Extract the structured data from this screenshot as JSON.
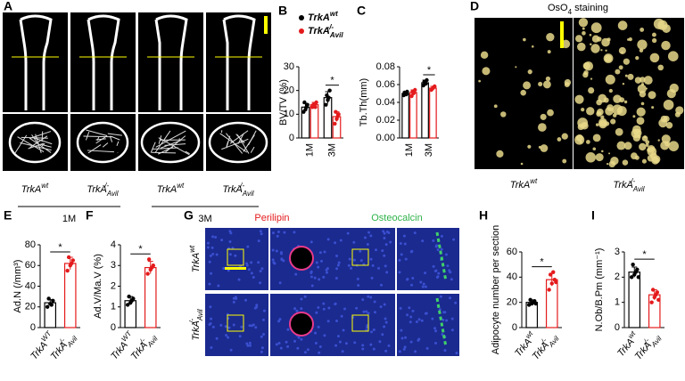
{
  "chart_data": [
    {
      "type": "bar",
      "letter": "B",
      "ylabel": "BV/TV (%)",
      "categories": [
        "1M",
        "3M"
      ],
      "series": [
        {
          "name": "TrkA",
          "sup": "wt",
          "color": "#000000",
          "values": [
            13,
            17
          ],
          "errors": [
            1.5,
            2.5
          ],
          "points": [
            [
              11,
              12,
              14,
              15,
              13
            ],
            [
              14,
              16,
              20,
              18,
              17
            ]
          ]
        },
        {
          "name": "TrkA",
          "sub": "Avil",
          "sup": "-/-",
          "color": "#e41a1c",
          "values": [
            14,
            9
          ],
          "errors": [
            1,
            2
          ],
          "points": [
            [
              13,
              14,
              15,
              14,
              13
            ],
            [
              6,
              8,
              10,
              11,
              9
            ]
          ]
        }
      ],
      "ylim": [
        0,
        30
      ],
      "yticks": [
        0,
        10,
        20,
        30
      ],
      "significance": {
        "text": "*",
        "category": "3M"
      }
    },
    {
      "type": "bar",
      "letter": "C",
      "ylabel": "Tb.Th(mm)",
      "categories": [
        "1M",
        "3M"
      ],
      "series": [
        {
          "color": "#000000",
          "values": [
            0.05,
            0.062
          ],
          "errors": [
            0.002,
            0.003
          ],
          "points": [
            [
              0.048,
              0.05,
              0.052,
              0.051,
              0.049
            ],
            [
              0.059,
              0.062,
              0.065,
              0.063,
              0.061
            ]
          ]
        },
        {
          "color": "#e41a1c",
          "values": [
            0.051,
            0.056
          ],
          "errors": [
            0.003,
            0.002
          ],
          "points": [
            [
              0.047,
              0.05,
              0.054,
              0.052,
              0.051
            ],
            [
              0.054,
              0.056,
              0.058,
              0.055,
              0.057
            ]
          ]
        }
      ],
      "ylim": [
        0,
        0.08
      ],
      "yticks": [
        {
          "value": 0,
          "label": "0.00"
        },
        {
          "value": 0.02,
          "label": "0.02"
        },
        {
          "value": 0.04,
          "label": "0.04"
        },
        {
          "value": 0.06,
          "label": "0.06"
        },
        {
          "value": 0.08,
          "label": "0.08"
        }
      ],
      "significance": {
        "text": "*",
        "category": "3M"
      }
    },
    {
      "type": "bar",
      "letter": "E",
      "ylabel": "Ad.N (/mm³)",
      "categories": [
        {
          "text": "TrkA",
          "sup": "WT"
        },
        {
          "text": "TrkA",
          "sub": "Avil",
          "sup": "-/-"
        }
      ],
      "colors": [
        "#000000",
        "#e41a1c"
      ],
      "values": [
        24,
        62
      ],
      "errors": [
        3,
        6
      ],
      "points": [
        [
          20,
          23,
          26,
          28,
          22
        ],
        [
          55,
          60,
          65,
          68,
          62
        ]
      ],
      "ylim": [
        0,
        80
      ],
      "yticks": [
        0,
        20,
        40,
        60,
        80
      ],
      "significance": {
        "text": "*"
      }
    },
    {
      "type": "bar",
      "letter": "F",
      "ylabel": "Ad.V/Ma.V (%)",
      "categories": [
        {
          "text": "TrkA",
          "sup": "WT"
        },
        {
          "text": "TrkA",
          "sub": "Avil",
          "sup": "-/-"
        }
      ],
      "colors": [
        "#000000",
        "#e41a1c"
      ],
      "values": [
        1.3,
        2.9
      ],
      "errors": [
        0.2,
        0.3
      ],
      "points": [
        [
          1.1,
          1.2,
          1.4,
          1.5,
          1.3
        ],
        [
          2.6,
          2.8,
          3.0,
          3.3,
          2.9
        ]
      ],
      "ylim": [
        0,
        4
      ],
      "yticks": [
        0,
        1,
        2,
        3,
        4
      ],
      "significance": {
        "text": "*"
      }
    },
    {
      "type": "bar",
      "letter": "H",
      "ylabel": "Adipocyte number per section",
      "categories": [
        {
          "text": "TrkA",
          "sup": "wt"
        },
        {
          "text": "TrkA",
          "sub": "Avil",
          "sup": "-/-"
        }
      ],
      "colors": [
        "#000000",
        "#e41a1c"
      ],
      "values": [
        20,
        38
      ],
      "errors": [
        2,
        5
      ],
      "points": [
        [
          18,
          19,
          21,
          22,
          20,
          19
        ],
        [
          30,
          35,
          38,
          42,
          44,
          36
        ]
      ],
      "ylim": [
        0,
        60
      ],
      "yticks": [
        0,
        20,
        40,
        60
      ],
      "significance": {
        "text": "*"
      }
    },
    {
      "type": "bar",
      "letter": "I",
      "ylabel": "N.Ob/B.Pm (mm⁻¹)",
      "categories": [
        {
          "text": "TrkA",
          "sup": "wt"
        },
        {
          "text": "TrkA",
          "sub": "Avil",
          "sup": "-/-"
        }
      ],
      "colors": [
        "#000000",
        "#e41a1c"
      ],
      "values": [
        2.2,
        1.3
      ],
      "errors": [
        0.2,
        0.2
      ],
      "points": [
        [
          2.0,
          2.1,
          2.3,
          2.5,
          2.2,
          2.0
        ],
        [
          1.0,
          1.2,
          1.4,
          1.5,
          1.3,
          1.1
        ]
      ],
      "ylim": [
        0,
        3
      ],
      "yticks": [
        0,
        1,
        2,
        3
      ],
      "significance": {
        "text": "*"
      }
    }
  ],
  "figure": {
    "panel_a": {
      "letter": "A",
      "labels": [
        {
          "text": "TrkA",
          "sup": "wt"
        },
        {
          "text": "TrkA",
          "sub": "Avil",
          "sup": "-/-"
        },
        {
          "text": "TrkA",
          "sup": "wt"
        },
        {
          "text": "TrkA",
          "sub": "Avil",
          "sup": "-/-"
        }
      ],
      "groups": [
        "1M",
        "3M"
      ]
    },
    "panel_d": {
      "letter": "D",
      "title": "OsO",
      "title_sub": "4",
      "title_rest": " staining",
      "labels": [
        {
          "text": "TrkA",
          "sup": "wt"
        },
        {
          "text": "TrkA",
          "sub": "Avil",
          "sup": "-/-"
        }
      ]
    },
    "panel_g": {
      "letter": "G",
      "columns": [
        "Perilipin",
        "Osteocalcin"
      ],
      "rows": [
        {
          "text": "TrkA",
          "sup": "wt"
        },
        {
          "text": "TrkA",
          "sub": "Avil",
          "sup": "-/-"
        }
      ]
    }
  }
}
